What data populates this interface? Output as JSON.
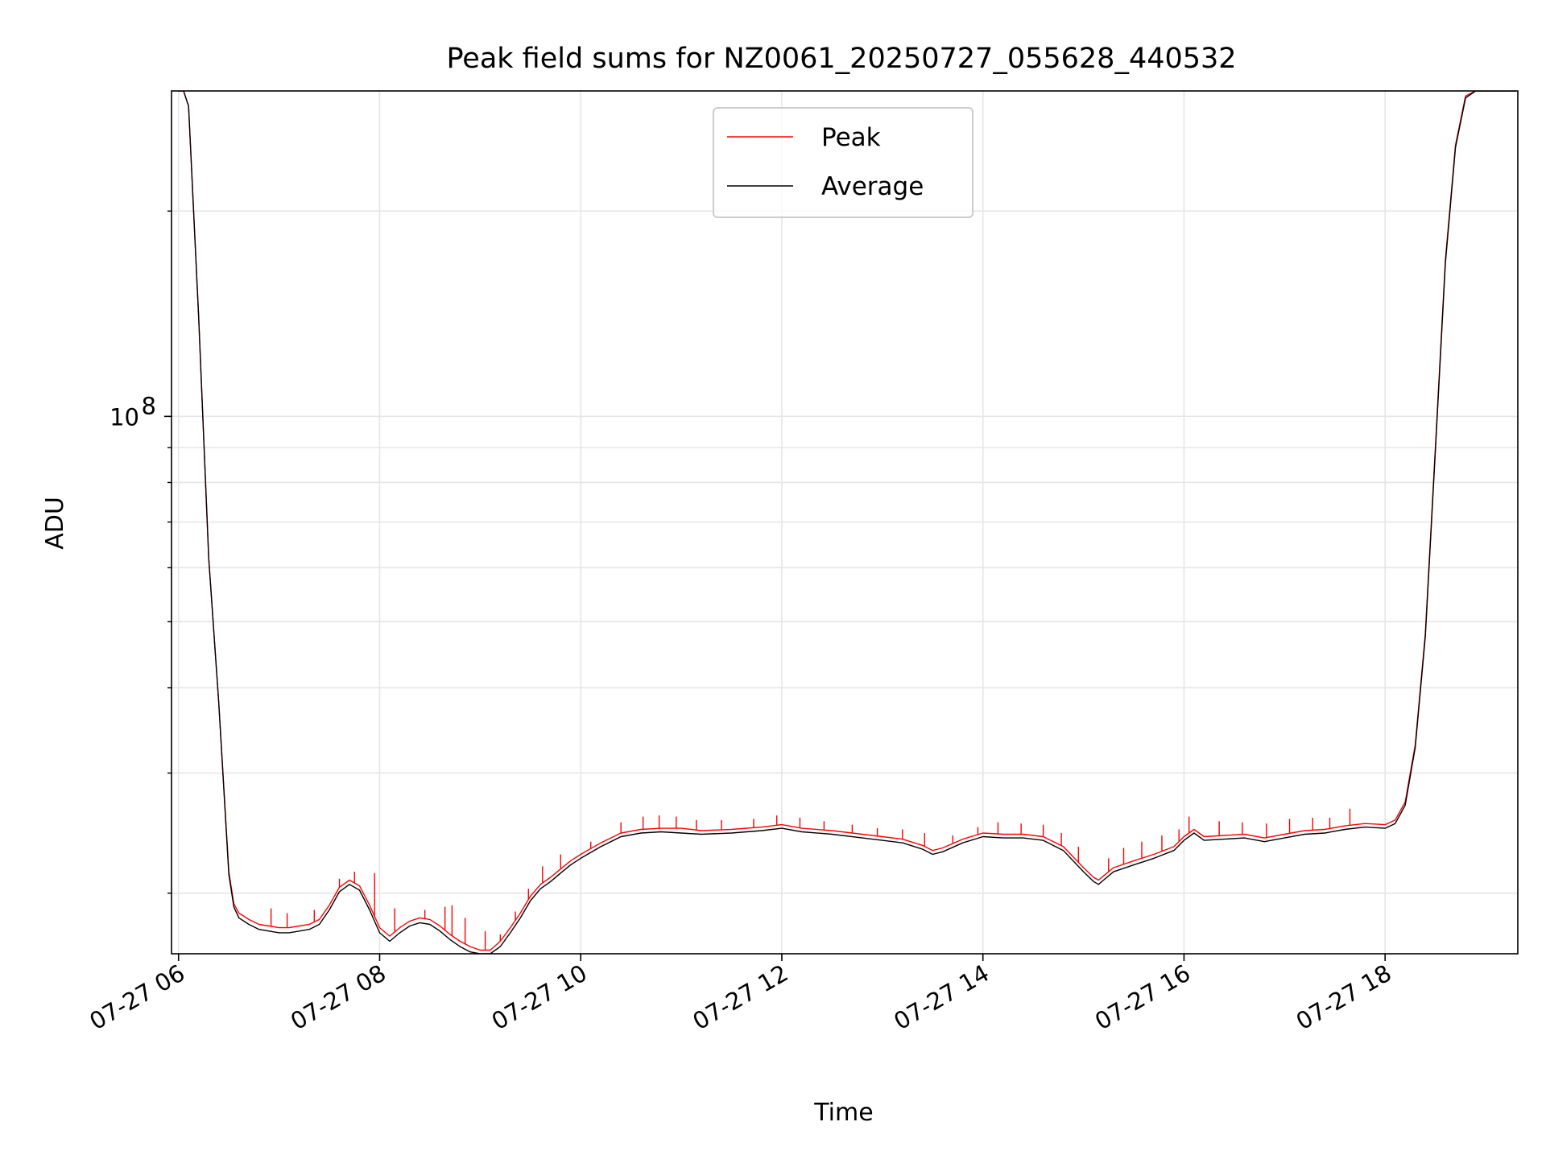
{
  "chart_data": {
    "type": "line",
    "title": "Peak field sums for NZ0061_20250727_055628_440532",
    "xlabel": "Time",
    "ylabel": "ADU",
    "x_unit": "hour of day on 2025-07-27",
    "xlim": [
      5.93,
      19.32
    ],
    "ylim": [
      16300000,
      300000000
    ],
    "y_scale": "log",
    "x_ticks": [
      {
        "value": 6,
        "label": "07-27 06"
      },
      {
        "value": 8,
        "label": "07-27 08"
      },
      {
        "value": 10,
        "label": "07-27 10"
      },
      {
        "value": 12,
        "label": "07-27 12"
      },
      {
        "value": 14,
        "label": "07-27 14"
      },
      {
        "value": 16,
        "label": "07-27 16"
      },
      {
        "value": 18,
        "label": "07-27 18"
      }
    ],
    "y_major_ticks": [
      {
        "value": 100000000,
        "base": "10",
        "exp": "8"
      }
    ],
    "y_minor_ticks": [
      20000000,
      30000000,
      40000000,
      50000000,
      60000000,
      70000000,
      80000000,
      90000000,
      200000000
    ],
    "grid": true,
    "legend_position": "top-center",
    "series": [
      {
        "name": "Peak",
        "color": "#ff0000",
        "x": [
          6.0,
          6.05,
          6.1,
          6.2,
          6.3,
          6.4,
          6.5,
          6.55,
          6.6,
          6.7,
          6.8,
          6.9,
          7.0,
          7.1,
          7.2,
          7.3,
          7.4,
          7.5,
          7.6,
          7.7,
          7.8,
          7.9,
          8.0,
          8.1,
          8.2,
          8.3,
          8.4,
          8.5,
          8.6,
          8.7,
          8.8,
          8.9,
          9.0,
          9.1,
          9.2,
          9.3,
          9.4,
          9.5,
          9.6,
          9.7,
          9.8,
          9.9,
          10.0,
          10.2,
          10.4,
          10.6,
          10.8,
          11.0,
          11.2,
          11.5,
          11.8,
          12.0,
          12.2,
          12.5,
          12.8,
          13.0,
          13.2,
          13.4,
          13.5,
          13.6,
          13.8,
          14.0,
          14.2,
          14.4,
          14.6,
          14.8,
          15.0,
          15.1,
          15.15,
          15.2,
          15.3,
          15.5,
          15.7,
          15.9,
          16.0,
          16.1,
          16.2,
          16.4,
          16.6,
          16.8,
          17.0,
          17.2,
          17.4,
          17.6,
          17.8,
          18.0,
          18.1,
          18.2,
          18.3,
          18.4,
          18.5,
          18.6,
          18.7,
          18.8,
          18.9,
          19.0,
          19.3
        ],
        "y": [
          300000000,
          300000000,
          285000000,
          140000000,
          62000000,
          38000000,
          21500000,
          19300000,
          18700000,
          18300000,
          18000000,
          17900000,
          17800000,
          17800000,
          17900000,
          18000000,
          18300000,
          19200000,
          20400000,
          20900000,
          20500000,
          19200000,
          17800000,
          17300000,
          17800000,
          18200000,
          18400000,
          18300000,
          17900000,
          17400000,
          17000000,
          16700000,
          16500000,
          16500000,
          17000000,
          17800000,
          18700000,
          19800000,
          20600000,
          21100000,
          21700000,
          22300000,
          22800000,
          23700000,
          24500000,
          24800000,
          24900000,
          24900000,
          24700000,
          24800000,
          25000000,
          25200000,
          24900000,
          24700000,
          24400000,
          24200000,
          24000000,
          23500000,
          23100000,
          23300000,
          24000000,
          24500000,
          24400000,
          24400000,
          24200000,
          23400000,
          21800000,
          21100000,
          20900000,
          21200000,
          21800000,
          22300000,
          22800000,
          23400000,
          24200000,
          24800000,
          24200000,
          24300000,
          24400000,
          24100000,
          24400000,
          24700000,
          24800000,
          25100000,
          25300000,
          25200000,
          25600000,
          27200000,
          33000000,
          48000000,
          90000000,
          170000000,
          250000000,
          295000000,
          300000000,
          300000000,
          300000000
        ],
        "spikes_x": [
          6.92,
          7.08,
          7.35,
          7.6,
          7.75,
          7.95,
          8.15,
          8.45,
          8.65,
          8.72,
          8.85,
          9.05,
          9.2,
          9.35,
          9.48,
          9.62,
          9.8,
          10.1,
          10.4,
          10.62,
          10.78,
          10.95,
          11.15,
          11.4,
          11.72,
          11.95,
          12.18,
          12.42,
          12.7,
          12.95,
          13.2,
          13.42,
          13.7,
          13.95,
          14.15,
          14.38,
          14.6,
          14.78,
          14.95,
          15.25,
          15.4,
          15.58,
          15.78,
          15.95,
          16.05,
          16.35,
          16.58,
          16.82,
          17.05,
          17.28,
          17.45,
          17.65
        ],
        "spikes_y": [
          19000000,
          18700000,
          18900000,
          21000000,
          21500000,
          21400000,
          19000000,
          18900000,
          19100000,
          19200000,
          18400000,
          17600000,
          17400000,
          18800000,
          20300000,
          21900000,
          22800000,
          23800000,
          25400000,
          25900000,
          26000000,
          25900000,
          25600000,
          25600000,
          25700000,
          26000000,
          25800000,
          25500000,
          25200000,
          24900000,
          24800000,
          24500000,
          24300000,
          25000000,
          25400000,
          25300000,
          25200000,
          24500000,
          23400000,
          22500000,
          23300000,
          23800000,
          24300000,
          24800000,
          25900000,
          25500000,
          25400000,
          25300000,
          25700000,
          25800000,
          25800000,
          26600000
        ]
      },
      {
        "name": "Average",
        "color": "#000000",
        "x": [
          6.0,
          6.05,
          6.1,
          6.2,
          6.3,
          6.4,
          6.5,
          6.55,
          6.6,
          6.7,
          6.8,
          6.9,
          7.0,
          7.1,
          7.2,
          7.3,
          7.4,
          7.5,
          7.6,
          7.7,
          7.8,
          7.9,
          8.0,
          8.1,
          8.2,
          8.3,
          8.4,
          8.5,
          8.6,
          8.7,
          8.8,
          8.9,
          9.0,
          9.1,
          9.2,
          9.3,
          9.4,
          9.5,
          9.6,
          9.7,
          9.8,
          9.9,
          10.0,
          10.2,
          10.4,
          10.6,
          10.8,
          11.0,
          11.2,
          11.5,
          11.8,
          12.0,
          12.2,
          12.5,
          12.8,
          13.0,
          13.2,
          13.4,
          13.5,
          13.6,
          13.8,
          14.0,
          14.2,
          14.4,
          14.6,
          14.8,
          15.0,
          15.1,
          15.15,
          15.2,
          15.3,
          15.5,
          15.7,
          15.9,
          16.0,
          16.1,
          16.2,
          16.4,
          16.6,
          16.8,
          17.0,
          17.2,
          17.4,
          17.6,
          17.8,
          18.0,
          18.1,
          18.2,
          18.3,
          18.4,
          18.5,
          18.6,
          18.7,
          18.8,
          18.9,
          19.0,
          19.3
        ],
        "y": [
          300000000,
          300000000,
          285000000,
          140000000,
          62000000,
          38000000,
          21300000,
          19100000,
          18400000,
          18000000,
          17700000,
          17600000,
          17500000,
          17500000,
          17600000,
          17700000,
          18000000,
          18900000,
          20100000,
          20600000,
          20200000,
          18900000,
          17500000,
          17000000,
          17500000,
          17900000,
          18100000,
          18000000,
          17600000,
          17100000,
          16700000,
          16400000,
          16300000,
          16300000,
          16700000,
          17500000,
          18400000,
          19500000,
          20300000,
          20800000,
          21400000,
          22000000,
          22500000,
          23400000,
          24200000,
          24500000,
          24600000,
          24500000,
          24400000,
          24500000,
          24700000,
          24900000,
          24600000,
          24400000,
          24100000,
          23900000,
          23700000,
          23200000,
          22800000,
          23000000,
          23700000,
          24200000,
          24100000,
          24100000,
          23900000,
          23100000,
          21500000,
          20800000,
          20600000,
          20900000,
          21500000,
          22000000,
          22500000,
          23100000,
          23900000,
          24500000,
          23900000,
          24000000,
          24100000,
          23800000,
          24100000,
          24400000,
          24500000,
          24800000,
          25000000,
          24900000,
          25300000,
          26900000,
          32700000,
          47500000,
          89000000,
          168000000,
          248000000,
          293000000,
          300000000,
          300000000,
          300000000
        ]
      }
    ]
  }
}
